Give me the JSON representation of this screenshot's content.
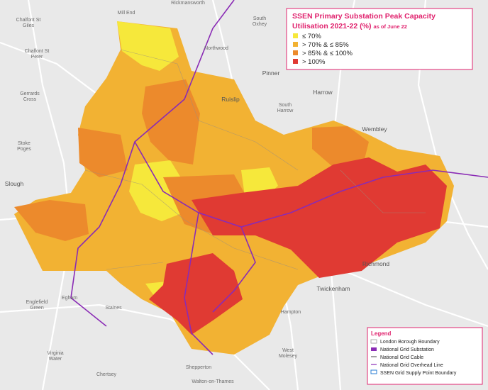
{
  "title": {
    "lines": [
      "SSEN Primary Substation Peak Capacity",
      "Utilisation 2021-22 (%)"
    ],
    "note": "as of June 22"
  },
  "capacity_legend": [
    {
      "label": "≤ 70%",
      "color": "#f6e83b"
    },
    {
      "label": "> 70% & ≤ 85%",
      "color": "#f2b233"
    },
    {
      "label": "> 85% & ≤ 100%",
      "color": "#ec8a2c"
    },
    {
      "label": "> 100%",
      "color": "#e03a33"
    }
  ],
  "legend": {
    "title": "Legend",
    "items": [
      "London Borough Boundary",
      "National Grid Substation",
      "National Grid Cable",
      "National Grid Overhead Line",
      "SSEN Grid Supply Point Boundary"
    ]
  },
  "places": [
    [
      "Rickmansworth"
    ],
    [
      "Mill End"
    ],
    [
      "Chalfont St",
      "Giles"
    ],
    [
      "South",
      "Oxhey"
    ],
    [
      "Chalfont St",
      "Peter"
    ],
    [
      "Northwood"
    ],
    [
      "Pinner"
    ],
    [
      "Gerrards",
      "Cross"
    ],
    [
      "Ruislip"
    ],
    [
      "Harrow"
    ],
    [
      "South",
      "Harrow"
    ],
    [
      "Wembley"
    ],
    [
      "Stoke",
      "Poges"
    ],
    [
      "Slough"
    ],
    [
      "Richmond"
    ],
    [
      "Twickenham"
    ],
    [
      "Englefield",
      "Green"
    ],
    [
      "Egham"
    ],
    [
      "Staines"
    ],
    [
      "Hampton"
    ],
    [
      "Virginia",
      "Water"
    ],
    [
      "West",
      "Molesey"
    ],
    [
      "Chertsey"
    ],
    [
      "Shepperton"
    ],
    [
      "Walton-on-Thames"
    ]
  ]
}
